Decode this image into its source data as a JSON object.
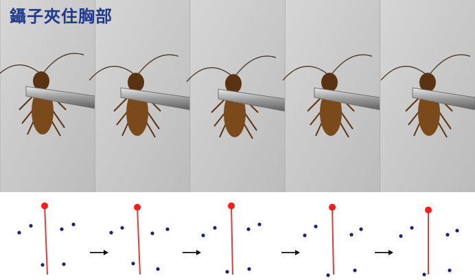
{
  "title": "鑷子夾住胸部",
  "colors": {
    "title": "#1f3a8c",
    "background_photo": "#cfcfcf",
    "tweezer": "#8f8f8f",
    "insect_body": "#7a4a1a",
    "insect_legs": "#5a3412",
    "stick": "#e53935",
    "stick_head": "#ff1a1a",
    "dots": "#1a237e",
    "arrow": "#111111"
  },
  "photo_frames": [
    {
      "name": "frame-1"
    },
    {
      "name": "frame-2"
    },
    {
      "name": "frame-3"
    },
    {
      "name": "frame-4"
    },
    {
      "name": "frame-5"
    }
  ],
  "skeleton_frames": [
    {
      "name": "stick-figure-1"
    },
    {
      "name": "stick-figure-2"
    },
    {
      "name": "stick-figure-3"
    },
    {
      "name": "stick-figure-4"
    },
    {
      "name": "stick-figure-5"
    }
  ],
  "arrow_icon": "right-arrow-icon"
}
